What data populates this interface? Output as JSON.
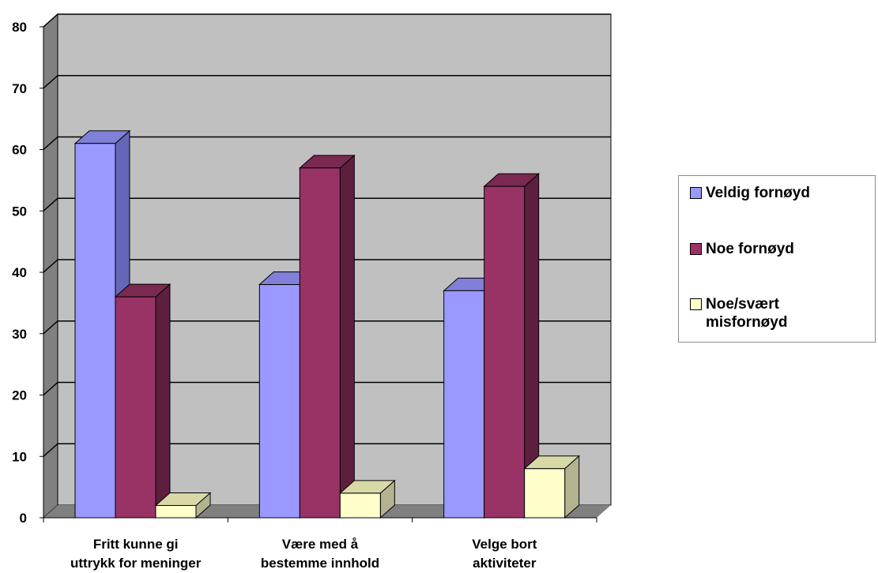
{
  "chart_data": {
    "type": "bar",
    "title": "",
    "xlabel": "",
    "ylabel": "",
    "ylim": [
      0,
      80
    ],
    "yticks": [
      0,
      10,
      20,
      30,
      40,
      50,
      60,
      70,
      80
    ],
    "grid": true,
    "legend_position": "right",
    "categories": [
      [
        "Fritt kunne gi",
        "uttrykk for meninger"
      ],
      [
        "Være med å",
        "bestemme innhold"
      ],
      [
        "Velge bort",
        "aktiviteter"
      ]
    ],
    "series": [
      {
        "name": "Veldig fornøyd",
        "values": [
          61,
          38,
          37
        ],
        "color": "#9999ff",
        "side": "#6666b8",
        "top": "#8080d8"
      },
      {
        "name": "Noe fornøyd",
        "values": [
          36,
          57,
          54
        ],
        "color": "#993366",
        "side": "#5e1f3f",
        "top": "#7a2950"
      },
      {
        "name": "Noe/svært misfornøyd",
        "values": [
          2,
          4,
          8
        ],
        "color": "#ffffcc",
        "side": "#b3b38f",
        "top": "#d9d9a8"
      }
    ],
    "wall_color": "#c0c0c0",
    "legend": [
      {
        "label": "Veldig fornøyd",
        "color": "#9999ff"
      },
      {
        "label": "Noe fornøyd",
        "color": "#993366"
      },
      {
        "label": "Noe/svært misfornøyd",
        "color": "#ffffcc"
      }
    ]
  }
}
